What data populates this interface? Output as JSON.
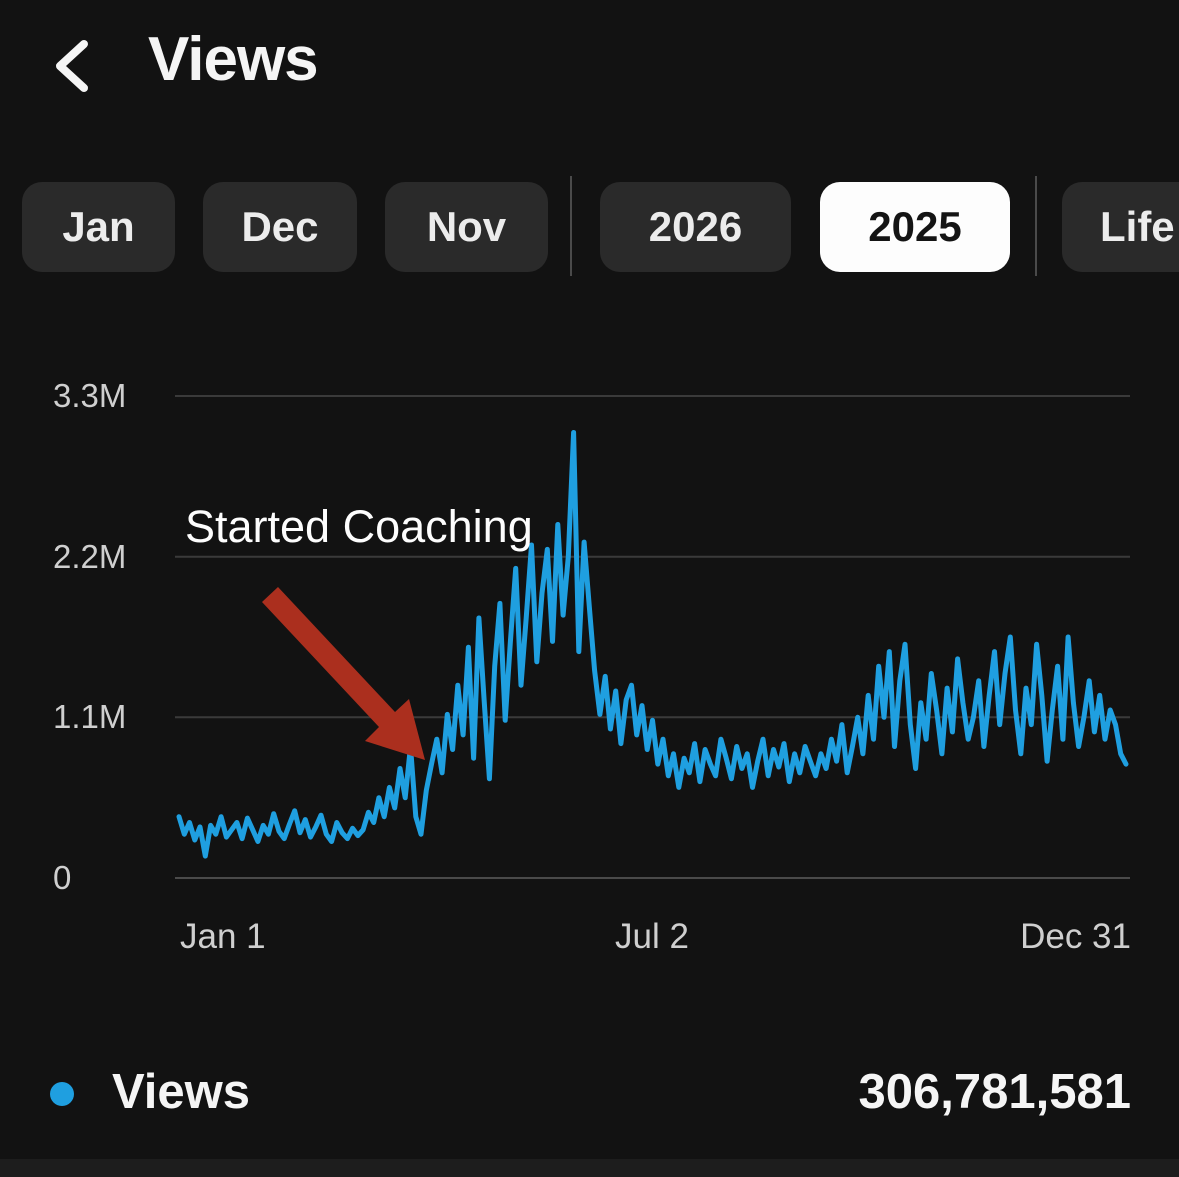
{
  "header": {
    "title": "Views",
    "back_icon": "chevron-left"
  },
  "filters": {
    "pills": [
      {
        "label": "Jan",
        "selected": false
      },
      {
        "label": "Dec",
        "selected": false
      },
      {
        "label": "Nov",
        "selected": false
      },
      {
        "label": "2026",
        "selected": false
      },
      {
        "label": "2025",
        "selected": true
      },
      {
        "label": "Life",
        "selected": false
      }
    ]
  },
  "chart_data": {
    "type": "line",
    "title": "",
    "unit": "millions of views per day",
    "x_ticks": [
      "Jan 1",
      "Jul 2",
      "Dec 31"
    ],
    "y_ticks": [
      {
        "label": "3.3M",
        "value": 3.3
      },
      {
        "label": "2.2M",
        "value": 2.2
      },
      {
        "label": "1.1M",
        "value": 1.1
      },
      {
        "label": "0",
        "value": 0
      }
    ],
    "ylim": [
      0,
      3.48
    ],
    "grid": true,
    "legend_position": "bottom",
    "annotation": {
      "text": "Started Coaching",
      "arrow_color": "#ab2f1e"
    },
    "series": [
      {
        "name": "Views",
        "color": "#1f9fe0",
        "values": [
          0.42,
          0.3,
          0.38,
          0.26,
          0.35,
          0.15,
          0.36,
          0.3,
          0.42,
          0.28,
          0.33,
          0.38,
          0.27,
          0.41,
          0.33,
          0.25,
          0.36,
          0.3,
          0.44,
          0.32,
          0.27,
          0.37,
          0.46,
          0.31,
          0.4,
          0.28,
          0.35,
          0.43,
          0.3,
          0.25,
          0.38,
          0.31,
          0.27,
          0.34,
          0.29,
          0.33,
          0.45,
          0.38,
          0.55,
          0.42,
          0.62,
          0.48,
          0.75,
          0.55,
          0.9,
          0.42,
          0.3,
          0.6,
          0.78,
          0.95,
          0.72,
          1.12,
          0.88,
          1.32,
          0.98,
          1.58,
          0.82,
          1.78,
          1.22,
          0.68,
          1.45,
          1.88,
          1.08,
          1.62,
          2.12,
          1.32,
          1.78,
          2.28,
          1.48,
          1.95,
          2.25,
          1.62,
          2.42,
          1.8,
          2.2,
          3.05,
          1.55,
          2.3,
          1.85,
          1.42,
          1.12,
          1.38,
          1.02,
          1.28,
          0.92,
          1.22,
          1.32,
          0.98,
          1.18,
          0.88,
          1.08,
          0.78,
          0.95,
          0.7,
          0.85,
          0.62,
          0.82,
          0.72,
          0.92,
          0.66,
          0.88,
          0.78,
          0.7,
          0.95,
          0.82,
          0.68,
          0.9,
          0.75,
          0.85,
          0.62,
          0.8,
          0.95,
          0.7,
          0.88,
          0.76,
          0.92,
          0.66,
          0.85,
          0.72,
          0.9,
          0.8,
          0.7,
          0.85,
          0.75,
          0.95,
          0.8,
          1.05,
          0.72,
          0.9,
          1.1,
          0.85,
          1.25,
          0.95,
          1.45,
          1.1,
          1.55,
          0.9,
          1.35,
          1.6,
          1.05,
          0.75,
          1.2,
          0.95,
          1.4,
          1.15,
          0.85,
          1.3,
          1.0,
          1.5,
          1.2,
          0.95,
          1.1,
          1.35,
          0.9,
          1.25,
          1.55,
          1.05,
          1.4,
          1.65,
          1.15,
          0.85,
          1.3,
          1.05,
          1.6,
          1.25,
          0.8,
          1.15,
          1.45,
          0.95,
          1.65,
          1.2,
          0.9,
          1.1,
          1.35,
          1.0,
          1.25,
          0.95,
          1.15,
          1.05,
          0.85,
          0.78
        ]
      }
    ]
  },
  "legend": {
    "label": "Views",
    "value": "306,781,581",
    "dot_color": "#1f9fe0"
  }
}
